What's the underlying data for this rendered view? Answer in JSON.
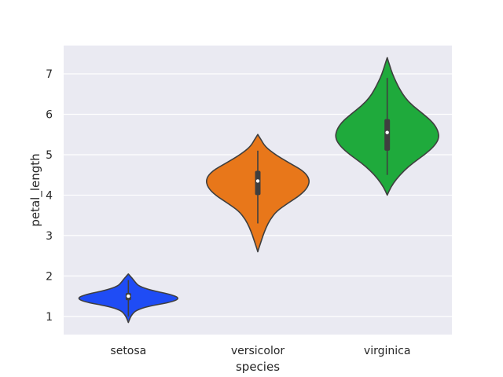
{
  "chart_data": {
    "type": "violin",
    "title": "",
    "xlabel": "species",
    "ylabel": "petal_length",
    "categories": [
      "setosa",
      "versicolor",
      "virginica"
    ],
    "ylim": [
      0.55,
      7.7
    ],
    "yticks": [
      1,
      2,
      3,
      4,
      5,
      6,
      7
    ],
    "grid": true,
    "legend": "none",
    "colors": {
      "setosa": "#1f4cf5",
      "versicolor": "#e8771a",
      "virginica": "#1faa3c",
      "plot_background": "#eaeaf2",
      "grid": "#ffffff",
      "outline": "#3f3f3f"
    },
    "series": [
      {
        "category": "setosa",
        "min": 1.0,
        "q1": 1.4,
        "median": 1.5,
        "q3": 1.58,
        "max": 1.9,
        "violin_extent": [
          0.85,
          2.05
        ],
        "density": [
          [
            0.85,
            0.0
          ],
          [
            0.95,
            0.03
          ],
          [
            1.05,
            0.07
          ],
          [
            1.15,
            0.15
          ],
          [
            1.25,
            0.38
          ],
          [
            1.35,
            0.82
          ],
          [
            1.45,
            1.0
          ],
          [
            1.55,
            0.8
          ],
          [
            1.65,
            0.42
          ],
          [
            1.75,
            0.2
          ],
          [
            1.85,
            0.13
          ],
          [
            1.95,
            0.07
          ],
          [
            2.05,
            0.0
          ]
        ]
      },
      {
        "category": "versicolor",
        "min": 3.3,
        "q1": 4.0,
        "median": 4.35,
        "q3": 4.6,
        "max": 5.1,
        "violin_extent": [
          2.6,
          5.5
        ],
        "density": [
          [
            2.6,
            0.0
          ],
          [
            2.8,
            0.05
          ],
          [
            3.0,
            0.1
          ],
          [
            3.2,
            0.16
          ],
          [
            3.4,
            0.24
          ],
          [
            3.6,
            0.36
          ],
          [
            3.8,
            0.58
          ],
          [
            4.0,
            0.82
          ],
          [
            4.2,
            0.97
          ],
          [
            4.4,
            1.0
          ],
          [
            4.6,
            0.88
          ],
          [
            4.8,
            0.6
          ],
          [
            5.0,
            0.34
          ],
          [
            5.2,
            0.14
          ],
          [
            5.4,
            0.05
          ],
          [
            5.5,
            0.0
          ]
        ]
      },
      {
        "category": "virginica",
        "min": 4.5,
        "q1": 5.1,
        "median": 5.55,
        "q3": 5.88,
        "max": 6.9,
        "violin_extent": [
          4.0,
          7.4
        ],
        "density": [
          [
            4.0,
            0.0
          ],
          [
            4.2,
            0.07
          ],
          [
            4.4,
            0.18
          ],
          [
            4.6,
            0.32
          ],
          [
            4.8,
            0.5
          ],
          [
            5.0,
            0.72
          ],
          [
            5.2,
            0.9
          ],
          [
            5.4,
            1.0
          ],
          [
            5.6,
            0.98
          ],
          [
            5.8,
            0.88
          ],
          [
            6.0,
            0.7
          ],
          [
            6.2,
            0.5
          ],
          [
            6.4,
            0.35
          ],
          [
            6.6,
            0.25
          ],
          [
            6.8,
            0.17
          ],
          [
            7.0,
            0.1
          ],
          [
            7.2,
            0.05
          ],
          [
            7.4,
            0.0
          ]
        ]
      }
    ]
  }
}
